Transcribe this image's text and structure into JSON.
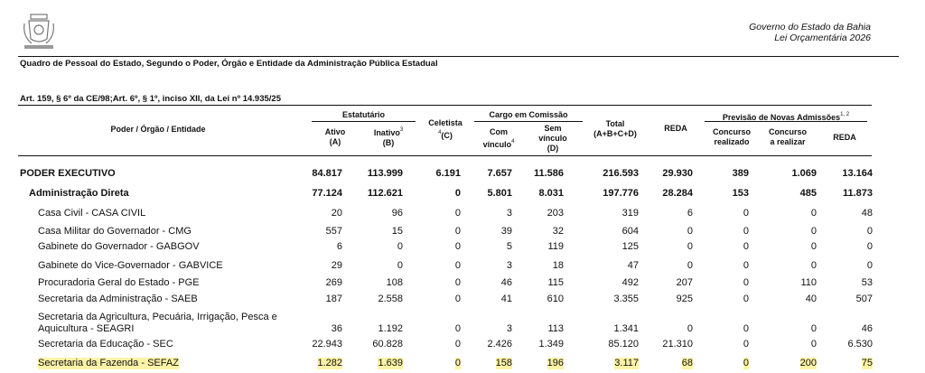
{
  "header": {
    "title": "Governo do Estado da Bahia",
    "subtitle": "Lei Orçamentária 2026"
  },
  "report_title": "Quadro de Pessoal do Estado, Segundo o Poder, Órgão e Entidade da Administração Pública Estadual",
  "legal_ref": "Art. 159, § 6º da CE/98;Art. 6º, § 1º, inciso XII, da Lei nº 14.935/25",
  "table": {
    "head": {
      "entity": "Poder / Órgão / Entidade",
      "estatutario": "Estatutário",
      "cargo": "Cargo em Comissão",
      "previsao": "Previsão de Novas Admissões",
      "previsao_sup": "1, 2",
      "ativo": "Ativo",
      "ativo_code": "(A)",
      "inativo": "Inativo",
      "inativo_sup": "3",
      "inativo_code": "(B)",
      "celetista": "Celetista",
      "celetista_sup": "4",
      "celetista_code": "(C)",
      "com": "Com",
      "com_vinculo": "vínculo",
      "com_sup": "4",
      "sem": "Sem",
      "sem_vinculo": "vínculo",
      "sem_code": "(D)",
      "total": "Total",
      "total_code": "(A+B+C+D)",
      "reda": "REDA",
      "realizado": "Concurso",
      "realizado_2": "realizado",
      "arealizar": "Concurso",
      "arealizar_2": "a realizar",
      "reda2": "REDA"
    },
    "rows": [
      {
        "label": "PODER EXECUTIVO",
        "level": 0,
        "bold": true,
        "values": [
          "84.817",
          "113.999",
          "6.191",
          "7.657",
          "11.586",
          "216.593",
          "29.930",
          "389",
          "1.069",
          "13.164"
        ]
      },
      {
        "label": "Administração Direta",
        "level": 1,
        "bold": true,
        "values": [
          "77.124",
          "112.621",
          "0",
          "5.801",
          "8.031",
          "197.776",
          "28.284",
          "153",
          "485",
          "11.873"
        ]
      },
      {
        "label": "Casa Civil - CASA CIVIL",
        "level": 2,
        "values": [
          "20",
          "96",
          "0",
          "3",
          "203",
          "319",
          "6",
          "0",
          "0",
          "48"
        ]
      },
      {
        "label": "Casa Militar do Governador - CMG",
        "level": 2,
        "values": [
          "557",
          "15",
          "0",
          "39",
          "32",
          "604",
          "0",
          "0",
          "0",
          "0"
        ]
      },
      {
        "label": "Gabinete do Governador - GABGOV",
        "level": 2,
        "values": [
          "6",
          "0",
          "0",
          "5",
          "119",
          "125",
          "0",
          "0",
          "0",
          "0"
        ]
      },
      {
        "label": "Gabinete do Vice-Governador - GABVICE",
        "level": 2,
        "values": [
          "29",
          "0",
          "0",
          "3",
          "18",
          "47",
          "0",
          "0",
          "0",
          "0"
        ]
      },
      {
        "label": "Procuradoria Geral do Estado - PGE",
        "level": 2,
        "values": [
          "269",
          "108",
          "0",
          "46",
          "115",
          "492",
          "207",
          "0",
          "110",
          "53"
        ]
      },
      {
        "label": "Secretaria da Administração - SAEB",
        "level": 2,
        "values": [
          "187",
          "2.558",
          "0",
          "41",
          "610",
          "3.355",
          "925",
          "0",
          "40",
          "507"
        ]
      },
      {
        "label": "Secretaria da Agricultura, Pecuária, Irrigação, Pesca e Aquicultura - SEAGRI",
        "level": 2,
        "values": [
          "36",
          "1.192",
          "0",
          "3",
          "113",
          "1.341",
          "0",
          "0",
          "0",
          "46"
        ]
      },
      {
        "label": "Secretaria da Educação - SEC",
        "level": 2,
        "values": [
          "22.943",
          "60.828",
          "0",
          "2.426",
          "1.349",
          "85.120",
          "21.310",
          "0",
          "0",
          "6.530"
        ]
      },
      {
        "label": "Secretaria da Fazenda - SEFAZ",
        "level": 2,
        "highlight": "#fdf3a6",
        "values": [
          "1.282",
          "1.639",
          "0",
          "158",
          "196",
          "3.117",
          "68",
          "0",
          "200",
          "75"
        ]
      }
    ]
  }
}
